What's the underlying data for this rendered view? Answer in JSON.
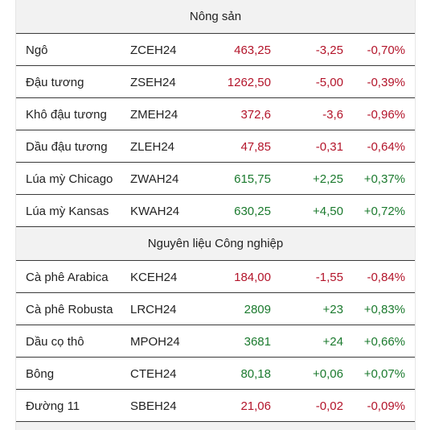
{
  "colors": {
    "negative": "#b3142a",
    "positive": "#1b7a2e",
    "header_bg": "#f2f2f2"
  },
  "sections": [
    {
      "title": "Nông sản",
      "rows": [
        {
          "name": "Ngô",
          "code": "ZCEH24",
          "price": "463,25",
          "change": "-3,25",
          "pct": "-0,70%",
          "dir": "neg"
        },
        {
          "name": "Đậu tương",
          "code": "ZSEH24",
          "price": "1262,50",
          "change": "-5,00",
          "pct": "-0,39%",
          "dir": "neg"
        },
        {
          "name": "Khô đậu tương",
          "code": "ZMEH24",
          "price": "372,6",
          "change": "-3,6",
          "pct": "-0,96%",
          "dir": "neg"
        },
        {
          "name": "Dầu đậu tương",
          "code": "ZLEH24",
          "price": "47,85",
          "change": "-0,31",
          "pct": "-0,64%",
          "dir": "neg"
        },
        {
          "name": "Lúa mỳ Chicago",
          "code": "ZWAH24",
          "price": "615,75",
          "change": "+2,25",
          "pct": "+0,37%",
          "dir": "pos"
        },
        {
          "name": "Lúa mỳ Kansas",
          "code": "KWAH24",
          "price": "630,25",
          "change": "+4,50",
          "pct": "+0,72%",
          "dir": "pos"
        }
      ]
    },
    {
      "title": "Nguyên liệu Công nghiệp",
      "rows": [
        {
          "name": "Cà phê Arabica",
          "code": "KCEH24",
          "price": "184,00",
          "change": "-1,55",
          "pct": "-0,84%",
          "dir": "neg"
        },
        {
          "name": "Cà phê Robusta",
          "code": "LRCH24",
          "price": "2809",
          "change": "+23",
          "pct": "+0,83%",
          "dir": "pos"
        },
        {
          "name": "Dầu cọ thô",
          "code": "MPOH24",
          "price": "3681",
          "change": "+24",
          "pct": "+0,66%",
          "dir": "pos"
        },
        {
          "name": "Bông",
          "code": "CTEH24",
          "price": "80,18",
          "change": "+0,06",
          "pct": "+0,07%",
          "dir": "pos"
        },
        {
          "name": "Đường 11",
          "code": "SBEH24",
          "price": "21,06",
          "change": "-0,02",
          "pct": "-0,09%",
          "dir": "neg"
        }
      ]
    }
  ]
}
